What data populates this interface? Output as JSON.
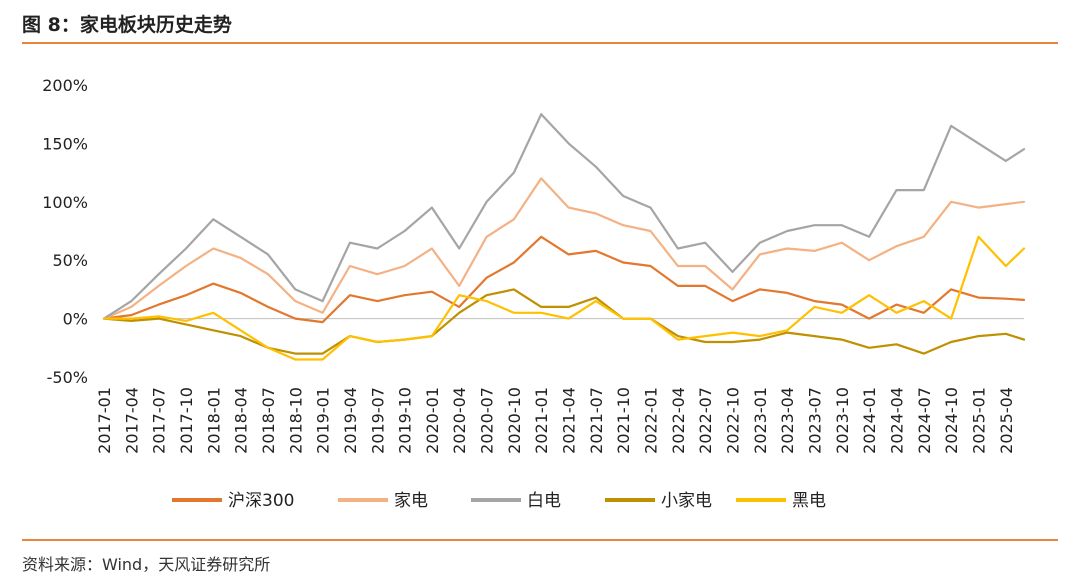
{
  "figure": {
    "title": "图 8：家电板块历史走势",
    "source": "资料来源：Wind，天风证券研究所"
  },
  "chart_data": {
    "type": "line",
    "yunit": "%",
    "ylim": [
      -50,
      200
    ],
    "yticks": [
      -50,
      0,
      50,
      100,
      150,
      200
    ],
    "ytick_labels": [
      "-50%",
      "0%",
      "50%",
      "100%",
      "150%",
      "200%"
    ],
    "xlim": [
      "2017-01",
      "2025-06"
    ],
    "xtick_labels": [
      "2017-01",
      "2017-04",
      "2017-07",
      "2017-10",
      "2018-01",
      "2018-04",
      "2018-07",
      "2018-10",
      "2019-01",
      "2019-04",
      "2019-07",
      "2019-10",
      "2020-01",
      "2020-04",
      "2020-07",
      "2020-10",
      "2021-01",
      "2021-04",
      "2021-07",
      "2021-10",
      "2022-01",
      "2022-04",
      "2022-07",
      "2022-10",
      "2023-01",
      "2023-04",
      "2023-07",
      "2023-10",
      "2024-01",
      "2024-04",
      "2024-07",
      "2024-10",
      "2025-01",
      "2025-04"
    ],
    "grid": false,
    "legend_position": "bottom",
    "x": [
      "2017-01",
      "2017-04",
      "2017-07",
      "2017-10",
      "2018-01",
      "2018-04",
      "2018-07",
      "2018-10",
      "2019-01",
      "2019-04",
      "2019-07",
      "2019-10",
      "2020-01",
      "2020-04",
      "2020-07",
      "2020-10",
      "2021-01",
      "2021-04",
      "2021-07",
      "2021-10",
      "2022-01",
      "2022-04",
      "2022-07",
      "2022-10",
      "2023-01",
      "2023-04",
      "2023-07",
      "2023-10",
      "2024-01",
      "2024-04",
      "2024-07",
      "2024-10",
      "2025-01",
      "2025-04",
      "2025-06"
    ],
    "series": [
      {
        "name": "沪深300",
        "color": "#E2782E",
        "values": [
          0,
          3,
          12,
          20,
          30,
          22,
          10,
          0,
          -3,
          20,
          15,
          20,
          23,
          10,
          35,
          48,
          70,
          55,
          58,
          48,
          45,
          28,
          28,
          15,
          25,
          22,
          15,
          12,
          0,
          12,
          5,
          25,
          18,
          17,
          16
        ]
      },
      {
        "name": "家电",
        "color": "#F4B183",
        "values": [
          0,
          10,
          28,
          45,
          60,
          52,
          38,
          15,
          5,
          45,
          38,
          45,
          60,
          28,
          70,
          85,
          120,
          95,
          90,
          80,
          75,
          45,
          45,
          25,
          55,
          60,
          58,
          65,
          50,
          62,
          70,
          100,
          95,
          98,
          100
        ]
      },
      {
        "name": "白电",
        "color": "#A5A5A5",
        "values": [
          0,
          15,
          38,
          60,
          85,
          70,
          55,
          25,
          15,
          65,
          60,
          75,
          95,
          60,
          100,
          125,
          175,
          150,
          130,
          105,
          95,
          60,
          65,
          40,
          65,
          75,
          80,
          80,
          70,
          110,
          110,
          165,
          150,
          135,
          145
        ]
      },
      {
        "name": "小家电",
        "color": "#BF9000",
        "values": [
          0,
          -2,
          0,
          -5,
          -10,
          -15,
          -25,
          -30,
          -30,
          -15,
          -20,
          -18,
          -15,
          5,
          20,
          25,
          10,
          10,
          18,
          0,
          0,
          -15,
          -20,
          -20,
          -18,
          -12,
          -15,
          -18,
          -25,
          -22,
          -30,
          -20,
          -15,
          -13,
          -18
        ]
      },
      {
        "name": "黑电",
        "color": "#FFC000",
        "values": [
          0,
          0,
          2,
          -2,
          5,
          -10,
          -25,
          -35,
          -35,
          -15,
          -20,
          -18,
          -15,
          20,
          15,
          5,
          5,
          0,
          15,
          0,
          0,
          -18,
          -15,
          -12,
          -15,
          -10,
          10,
          5,
          20,
          5,
          15,
          0,
          70,
          45,
          60
        ]
      }
    ]
  }
}
